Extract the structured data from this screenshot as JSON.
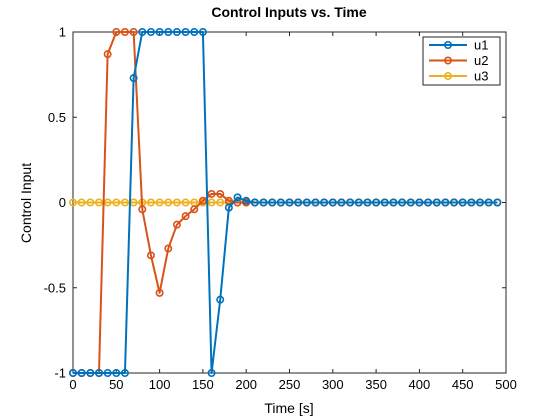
{
  "chart_data": {
    "type": "line",
    "title": "Control Inputs vs. Time",
    "xlabel": "Time [s]",
    "ylabel": "Control Input",
    "xlim": [
      0,
      500
    ],
    "ylim": [
      -1,
      1
    ],
    "xticks": [
      0,
      50,
      100,
      150,
      200,
      250,
      300,
      350,
      400,
      450,
      500
    ],
    "yticks": [
      -1,
      -0.5,
      0,
      0.5,
      1
    ],
    "ytick_labels": [
      "-1",
      "-0.5",
      "0",
      "0.5",
      "1"
    ],
    "grid": false,
    "legend_position": "top-right",
    "x": [
      0,
      10,
      20,
      30,
      40,
      50,
      60,
      70,
      80,
      90,
      100,
      110,
      120,
      130,
      140,
      150,
      160,
      170,
      180,
      190,
      200,
      210,
      220,
      230,
      240,
      250,
      260,
      270,
      280,
      290,
      300,
      310,
      320,
      330,
      340,
      350,
      360,
      370,
      380,
      390,
      400,
      410,
      420,
      430,
      440,
      450,
      460,
      470,
      480,
      490
    ],
    "series": [
      {
        "name": "u1",
        "color": "#0072BD",
        "values": [
          -1,
          -1,
          -1,
          -1,
          -1,
          -1,
          -1,
          0.73,
          1,
          1,
          1,
          1,
          1,
          1,
          1,
          1,
          -1,
          -0.57,
          -0.03,
          0.03,
          0.01,
          0,
          0,
          0,
          0,
          0,
          0,
          0,
          0,
          0,
          0,
          0,
          0,
          0,
          0,
          0,
          0,
          0,
          0,
          0,
          0,
          0,
          0,
          0,
          0,
          0,
          0,
          0,
          0,
          0
        ]
      },
      {
        "name": "u2",
        "color": "#D95319",
        "values": [
          -1,
          -1,
          -1,
          -1,
          0.87,
          1,
          1,
          1,
          -0.04,
          -0.31,
          -0.53,
          -0.27,
          -0.13,
          -0.08,
          -0.04,
          0.01,
          0.05,
          0.05,
          0.01,
          0,
          0,
          0,
          0,
          0,
          0,
          0,
          0,
          0,
          0,
          0,
          0,
          0,
          0,
          0,
          0,
          0,
          0,
          0,
          0,
          0,
          0,
          0,
          0,
          0,
          0,
          0,
          0,
          0,
          0,
          0
        ]
      },
      {
        "name": "u3",
        "color": "#EDB120",
        "values": [
          0,
          0,
          0,
          0,
          0,
          0,
          0,
          0,
          0,
          0,
          0,
          0,
          0,
          0,
          0,
          0,
          0,
          0,
          0,
          0,
          0,
          0,
          0,
          0,
          0,
          0,
          0,
          0,
          0,
          0,
          0,
          0,
          0,
          0,
          0,
          0,
          0,
          0,
          0,
          0,
          0,
          0,
          0,
          0,
          0,
          0,
          0,
          0,
          0,
          0
        ]
      }
    ]
  }
}
